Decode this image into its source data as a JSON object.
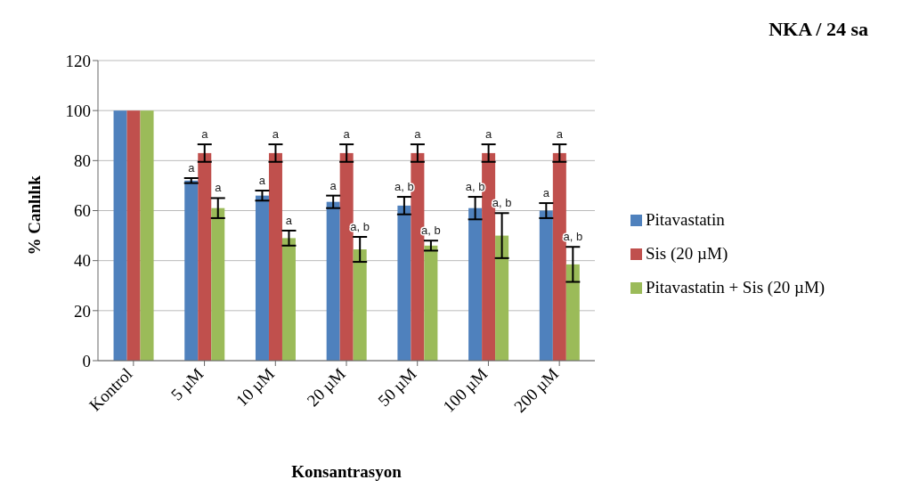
{
  "chart_data": {
    "type": "bar",
    "title": "NKA / 24 sa",
    "xlabel": "Konsantrasyon",
    "ylabel": "% Canlılık",
    "categories": [
      "Kontrol",
      "5 µM",
      "10 µM",
      "20 µM",
      "50 µM",
      "100 µM",
      "200 µM"
    ],
    "series": [
      {
        "name": "Pitavastatin",
        "color": "#4f81bd",
        "values": [
          100,
          72,
          66,
          63.5,
          62,
          61,
          60
        ],
        "errors": [
          null,
          1,
          2,
          2.5,
          3.5,
          4.5,
          3
        ],
        "value_labels": [
          null,
          "a",
          "a",
          "a",
          "a, b",
          "a, b",
          "a"
        ]
      },
      {
        "name": "Sis (20 µM)",
        "color": "#c0504d",
        "values": [
          100,
          83,
          83,
          83,
          83,
          83,
          83
        ],
        "errors": [
          null,
          3.5,
          3.5,
          3.5,
          3.5,
          3.5,
          3.5
        ],
        "value_labels": [
          null,
          "a",
          "a",
          "a",
          "a",
          "a",
          "a"
        ]
      },
      {
        "name": "Pitavastatin + Sis (20 µM)",
        "color": "#9bbb59",
        "values": [
          100,
          61,
          49,
          44.5,
          46,
          50,
          38.5
        ],
        "errors": [
          null,
          4,
          3,
          5,
          2,
          9,
          7
        ],
        "value_labels": [
          null,
          "a",
          "a",
          "a, b",
          "a, b",
          "a, b",
          "a, b"
        ]
      }
    ],
    "ylim": [
      0,
      120
    ],
    "yticks": [
      0,
      20,
      40,
      60,
      80,
      100,
      120
    ],
    "grid": "y",
    "legend": "right"
  }
}
